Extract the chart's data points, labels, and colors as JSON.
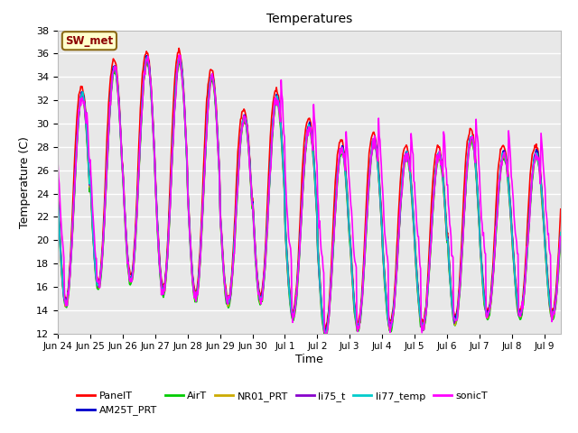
{
  "title": "Temperatures",
  "xlabel": "Time",
  "ylabel": "Temperature (C)",
  "ylim": [
    12,
    38
  ],
  "yticks": [
    12,
    14,
    16,
    18,
    20,
    22,
    24,
    26,
    28,
    30,
    32,
    34,
    36,
    38
  ],
  "annotation_text": "SW_met",
  "annotation_box_color": "#ffffcc",
  "annotation_text_color": "#8b0000",
  "annotation_border_color": "#8b6914",
  "bg_color": "#e8e8e8",
  "series_order": [
    "PanelT",
    "AM25T_PRT",
    "AirT",
    "NR01_PRT",
    "li75_t",
    "li77_temp",
    "sonicT"
  ],
  "series": {
    "PanelT": {
      "color": "#ff0000",
      "lw": 1.2
    },
    "AM25T_PRT": {
      "color": "#0000cc",
      "lw": 1.2
    },
    "AirT": {
      "color": "#00cc00",
      "lw": 1.2
    },
    "NR01_PRT": {
      "color": "#ccaa00",
      "lw": 1.2
    },
    "li75_t": {
      "color": "#8800cc",
      "lw": 1.2
    },
    "li77_temp": {
      "color": "#00cccc",
      "lw": 1.2
    },
    "sonicT": {
      "color": "#ff00ff",
      "lw": 1.2
    }
  },
  "xtick_labels": [
    "Jun 24",
    "Jun 25",
    "Jun 26",
    "Jun 27",
    "Jun 28",
    "Jun 29",
    "Jun 30",
    "Jul 1",
    "Jul 2",
    "Jul 3",
    "Jul 4",
    "Jul 5",
    "Jul 6",
    "Jul 7",
    "Jul 8",
    "Jul 9"
  ],
  "day_peaks": [
    33.0,
    35.3,
    36.0,
    36.0,
    34.5,
    31.0,
    32.7,
    30.2,
    28.3,
    29.0,
    27.9,
    27.8,
    29.3,
    27.9
  ],
  "day_lows": [
    15.0,
    16.5,
    17.0,
    16.0,
    15.5,
    15.0,
    15.3,
    14.0,
    12.5,
    13.0,
    13.0,
    13.0,
    13.5,
    14.0
  ],
  "panel_extra": 2.0,
  "sonic_night_boost_early": 3.5,
  "sonic_later_boost": 4.5,
  "xlim": [
    0,
    15.5
  ],
  "figsize": [
    6.4,
    4.8
  ],
  "dpi": 100
}
